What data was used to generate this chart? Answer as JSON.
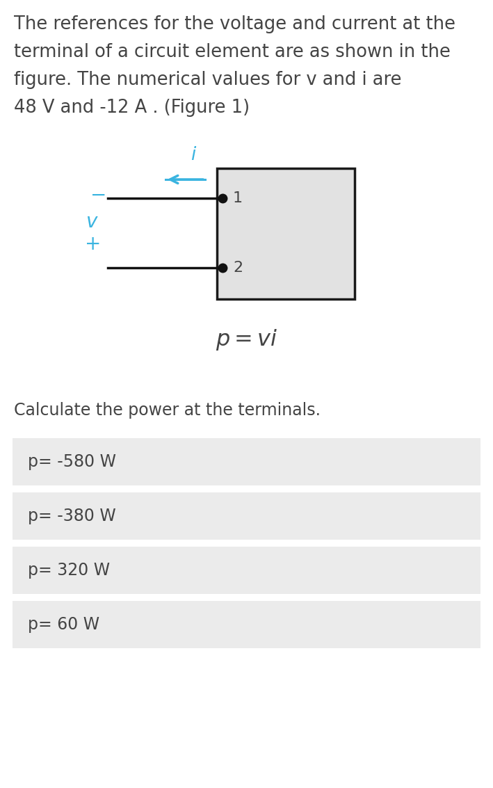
{
  "background_color": "#ffffff",
  "text_color": "#444444",
  "blue_color": "#3ab4e0",
  "desc_line1": "The references for the voltage and current at the",
  "desc_line2": "terminal of a circuit element are as shown in the",
  "desc_line3": "figure. The numerical values for v and i are",
  "desc_line4": "48 V and -12 A . (Figure 1)",
  "question_text": "Calculate the power at the terminals.",
  "choices": [
    "p= -580 W",
    "p= -380 W",
    "p= 320 W",
    "p= 60 W"
  ],
  "choice_bg": "#ebebeb",
  "choice_text_color": "#444444",
  "fig_bg": "#e2e2e2",
  "fig_border": "#1a1a1a",
  "wire_color": "#111111",
  "dot_color": "#111111",
  "desc_fontsize": 18.5,
  "choice_fontsize": 17,
  "question_fontsize": 17
}
